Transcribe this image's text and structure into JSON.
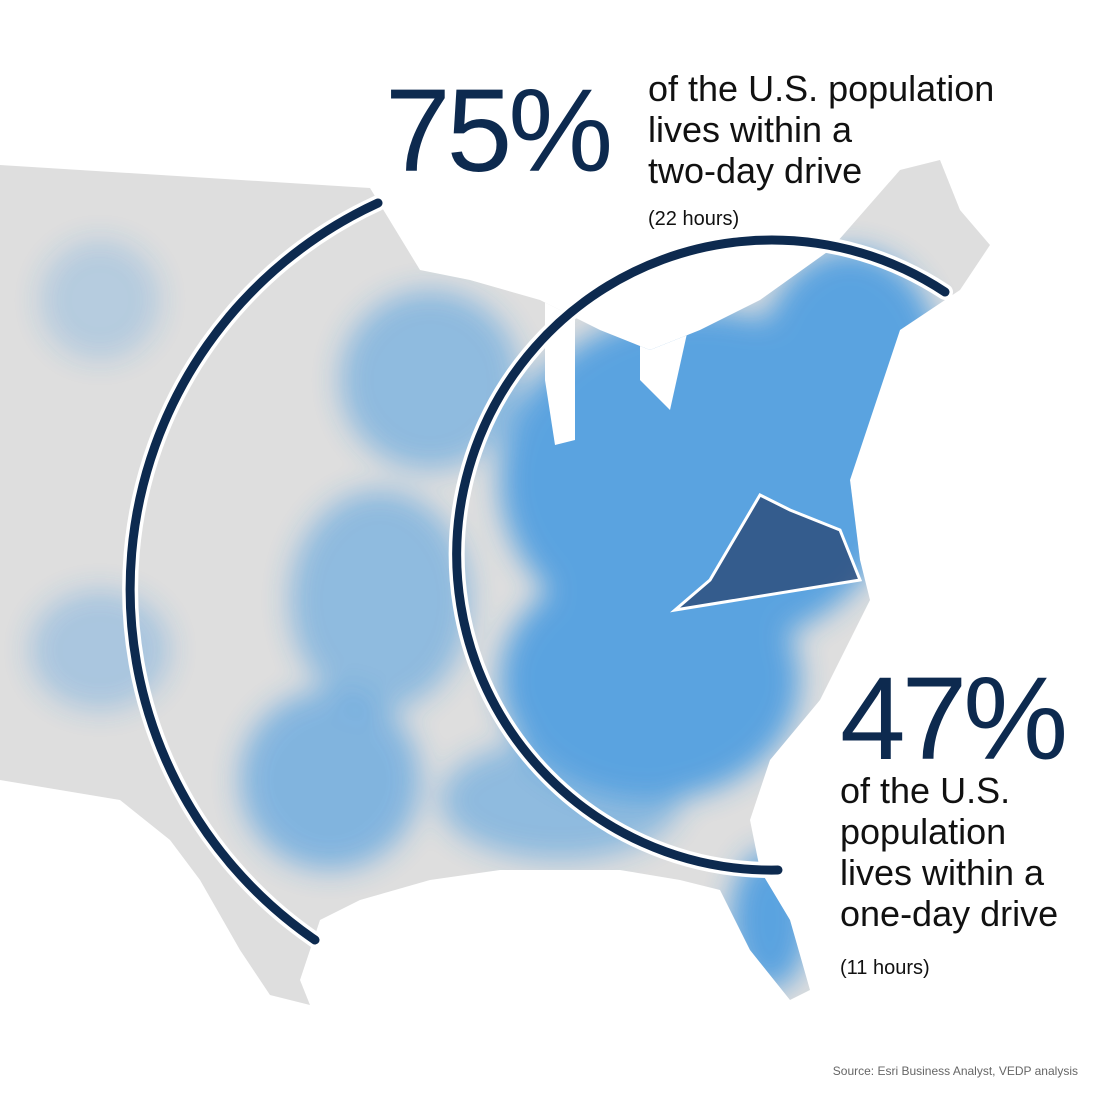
{
  "stats": [
    {
      "figure": "75%",
      "description": [
        "of the U.S. population",
        "lives within a",
        "two-day drive"
      ],
      "note": "(22 hours)"
    },
    {
      "figure": "47%",
      "description": [
        "of the U.S.",
        "population",
        "lives within a",
        "one-day drive"
      ],
      "note": "(11 hours)"
    }
  ],
  "source": "Source: Esri Business Analyst, VEDP analysis"
}
